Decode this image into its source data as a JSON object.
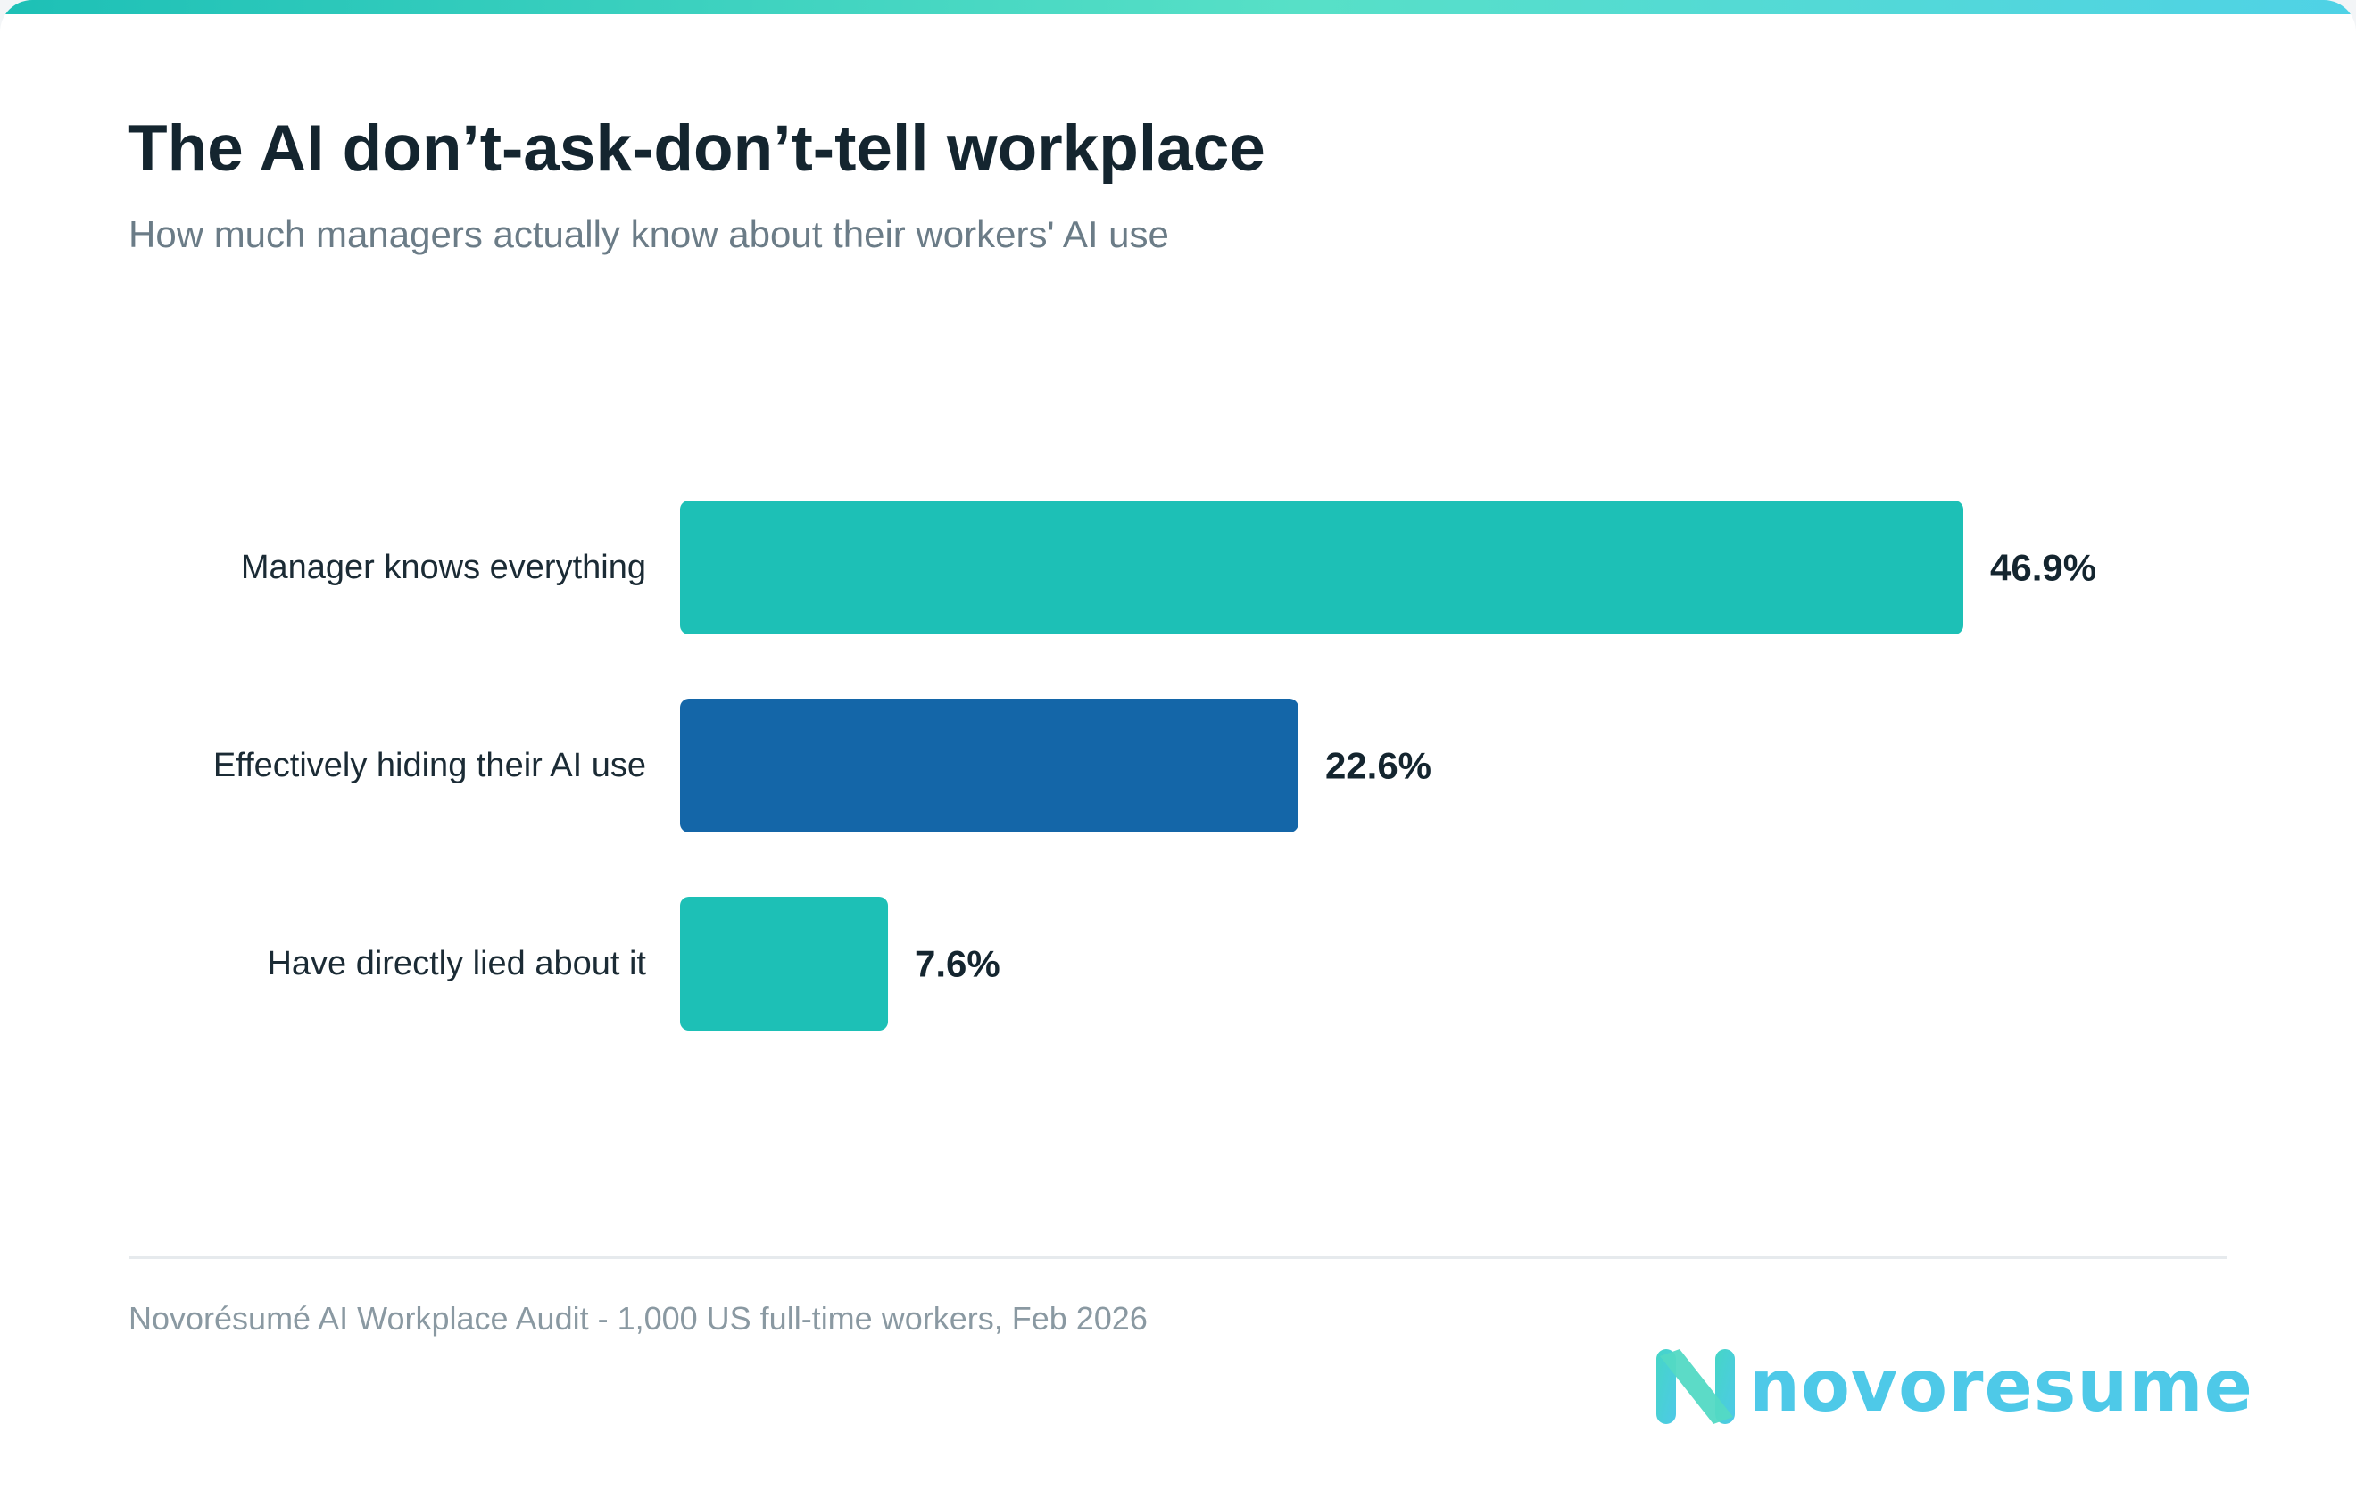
{
  "header": {
    "title": "The AI don’t-ask-don’t-tell workplace",
    "subtitle": "How much managers actually know about their workers' AI use"
  },
  "chart_data": {
    "type": "bar",
    "orientation": "horizontal",
    "title": "The AI don’t-ask-don’t-tell workplace",
    "subtitle": "How much managers actually know about their workers' AI use",
    "categories": [
      "Manager knows everything",
      "Effectively hiding their AI use",
      "Have directly lied about it"
    ],
    "values": [
      46.9,
      22.6,
      7.6
    ],
    "value_labels": [
      "46.9%",
      "22.6%",
      "7.6%"
    ],
    "unit": "%",
    "bar_colors": [
      "#1dc0b6",
      "#1466a8",
      "#1dc0b6"
    ],
    "xlim": [
      0,
      100
    ],
    "grid": false,
    "legend": "none"
  },
  "footer": {
    "source": "Novorésumé AI Workplace Audit - 1,000 US full-time workers, Feb 2026"
  },
  "brand": {
    "logo_text": "novoresume",
    "logo_icon": "n-logo-icon",
    "logo_color": "#4ec9e8"
  },
  "theme": {
    "title_color": "#14252f",
    "subtitle_color": "#6b7c87",
    "source_color": "#8a99a2",
    "accent_gradient": [
      "#1dc0b6",
      "#57e0c7",
      "#4fd2e6"
    ]
  }
}
